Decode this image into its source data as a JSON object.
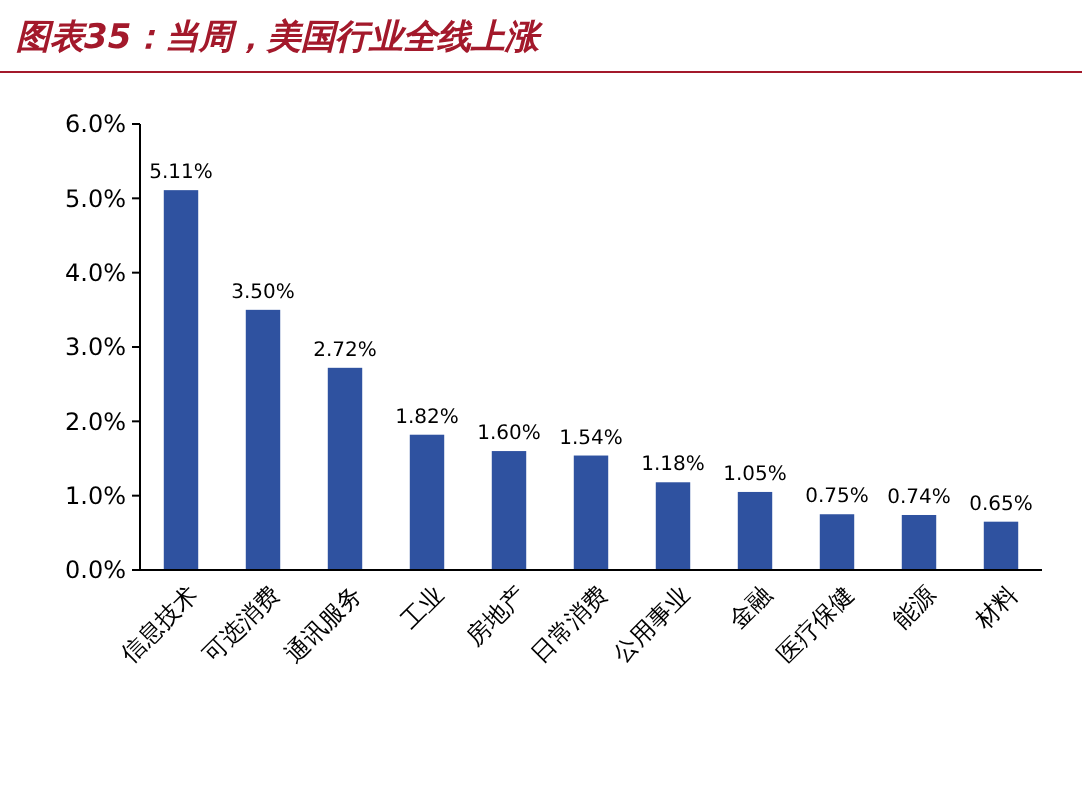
{
  "chart_data": {
    "type": "bar",
    "title": "图表35：当周，美国行业全线上涨",
    "categories": [
      "信息技术",
      "可选消费",
      "通讯服务",
      "工业",
      "房地产",
      "日常消费",
      "公用事业",
      "金融",
      "医疗保健",
      "能源",
      "材料"
    ],
    "values": [
      5.11,
      3.5,
      2.72,
      1.82,
      1.6,
      1.54,
      1.18,
      1.05,
      0.75,
      0.74,
      0.65
    ],
    "value_labels": [
      "5.11%",
      "3.50%",
      "2.72%",
      "1.82%",
      "1.60%",
      "1.54%",
      "1.18%",
      "1.05%",
      "0.75%",
      "0.74%",
      "0.65%"
    ],
    "color": "#2f52a0",
    "ylim": [
      0,
      6
    ],
    "yticks": [
      {
        "value": 0,
        "label": "0.0%"
      },
      {
        "value": 1,
        "label": "1.0%"
      },
      {
        "value": 2,
        "label": "2.0%"
      },
      {
        "value": 3,
        "label": "3.0%"
      },
      {
        "value": 4,
        "label": "4.0%"
      },
      {
        "value": 5,
        "label": "5.0%"
      },
      {
        "value": 6,
        "label": "6.0%"
      }
    ],
    "grid": false
  }
}
